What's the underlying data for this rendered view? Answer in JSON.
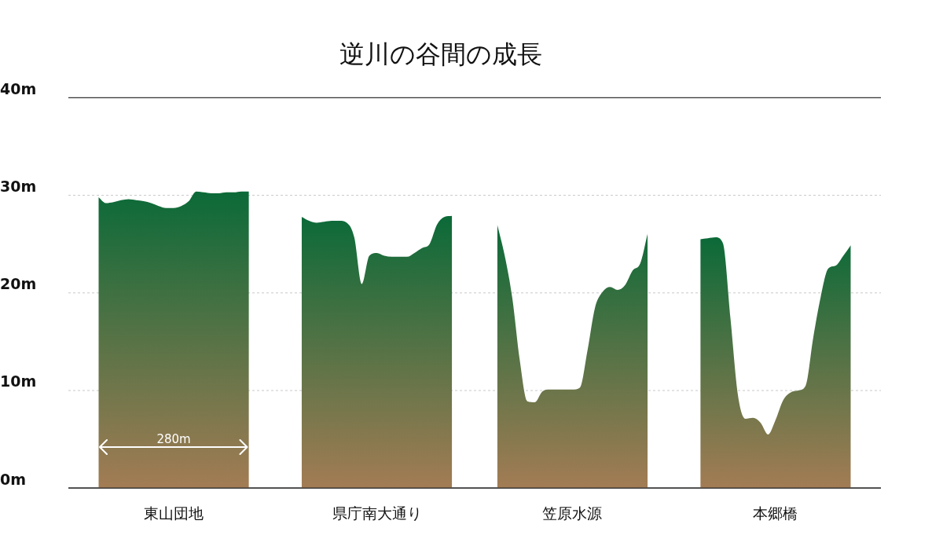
{
  "chart_data": {
    "type": "area",
    "title": "逆川の谷間の成長",
    "categories": [
      null,
      null,
      null,
      null,
      null,
      null,
      null,
      null,
      null,
      null,
      null,
      null,
      null,
      null,
      "東山団地",
      null,
      null,
      null,
      null,
      null,
      null,
      null,
      null,
      null,
      null,
      null,
      null,
      null,
      null,
      null,
      null,
      null,
      null,
      null,
      null,
      null,
      null,
      null,
      null,
      null,
      null,
      "県庁南大通り",
      null,
      null,
      null,
      null,
      null,
      null,
      null,
      null,
      null,
      null,
      null,
      null,
      null,
      null,
      null,
      null,
      null,
      null,
      null,
      null,
      null,
      null,
      null,
      null,
      null,
      "笠原水源",
      null,
      null,
      null,
      null,
      null,
      null,
      null,
      null,
      null,
      null,
      null,
      null,
      null,
      null,
      null,
      null,
      null,
      null,
      null,
      null,
      null,
      null,
      null,
      null,
      null,
      null,
      "本郷橋",
      null,
      null,
      null,
      null,
      null,
      null,
      null,
      null,
      null,
      null,
      null,
      null,
      null,
      null
    ],
    "ylim": [
      0,
      40
    ],
    "yticks": [
      {
        "value": 0,
        "label": "0m"
      },
      {
        "value": 10,
        "label": "10m"
      },
      {
        "value": 20,
        "label": "20m"
      },
      {
        "value": 30,
        "label": "30m"
      },
      {
        "value": 40,
        "label": "40m"
      }
    ],
    "grid": "y",
    "legend": false,
    "marker": "none",
    "series": [
      {
        "color": "#0b6a38",
        "values": [
          null,
          null,
          null,
          null,
          29.8,
          29.2,
          29.3,
          29.5,
          29.6,
          29.5,
          29.4,
          29.2,
          28.9,
          28.7,
          28.7,
          28.9,
          29.4,
          30.4,
          30.3,
          30.2,
          30.2,
          30.3,
          30.3,
          30.4,
          30.4,
          null,
          null,
          null,
          null,
          null,
          null,
          null,
          null,
          null,
          null,
          null,
          null,
          null,
          null,
          null,
          null,
          null,
          null,
          null,
          null,
          null,
          null,
          null,
          null,
          null,
          null,
          null,
          null,
          null,
          null,
          null,
          null,
          null,
          null,
          null,
          null,
          null,
          null,
          null,
          null,
          null,
          null,
          null,
          null,
          null,
          null,
          null,
          null,
          null,
          null,
          null,
          null,
          null,
          null,
          null,
          null,
          null,
          null,
          null,
          null,
          null,
          null,
          null,
          null,
          null,
          null,
          null,
          null,
          null,
          null,
          null,
          null,
          null,
          null,
          null,
          null,
          null,
          null,
          null,
          null,
          null,
          null,
          null,
          null
        ]
      },
      {
        "color": "#0b6a38",
        "values": [
          null,
          null,
          null,
          null,
          null,
          null,
          null,
          null,
          null,
          null,
          null,
          null,
          null,
          null,
          null,
          null,
          null,
          null,
          null,
          null,
          null,
          null,
          null,
          null,
          null,
          null,
          null,
          null,
          null,
          null,
          null,
          27.8,
          27.4,
          27.2,
          27.3,
          27.4,
          27.4,
          27.2,
          25.7,
          20.9,
          23.8,
          24.1,
          23.8,
          23.7,
          23.7,
          23.7,
          24.1,
          24.6,
          25.0,
          27.0,
          27.8,
          27.9,
          null,
          null,
          null,
          null,
          null,
          null,
          null,
          null,
          null,
          null,
          null,
          null,
          null,
          null,
          null,
          null,
          null,
          null,
          null,
          null,
          null,
          null,
          null,
          null,
          null,
          null,
          null,
          null,
          null,
          null,
          null,
          null,
          null,
          null,
          null,
          null,
          null,
          null,
          null,
          null,
          null,
          null,
          null,
          null,
          null,
          null,
          null,
          null,
          null,
          null,
          null,
          null,
          null,
          null,
          null,
          null,
          null
        ]
      },
      {
        "color": "#0b6a38",
        "values": [
          null,
          null,
          null,
          null,
          null,
          null,
          null,
          null,
          null,
          null,
          null,
          null,
          null,
          null,
          null,
          null,
          null,
          null,
          null,
          null,
          null,
          null,
          null,
          null,
          null,
          null,
          null,
          null,
          null,
          null,
          null,
          null,
          null,
          null,
          null,
          null,
          null,
          null,
          null,
          null,
          null,
          null,
          null,
          null,
          null,
          null,
          null,
          null,
          null,
          null,
          null,
          null,
          null,
          null,
          null,
          null,
          null,
          27.0,
          23.8,
          19.5,
          13.1,
          8.9,
          8.8,
          9.9,
          10.1,
          10.1,
          10.1,
          10.1,
          10.3,
          14.1,
          18.5,
          20.1,
          20.6,
          20.3,
          20.8,
          22.3,
          23.0,
          26.1,
          null,
          null,
          null,
          null,
          null,
          null,
          null,
          null,
          null,
          null,
          null,
          null,
          null,
          null,
          null,
          null,
          null,
          null,
          null,
          null,
          null,
          null,
          null,
          null,
          null,
          null,
          null,
          null,
          null,
          null,
          null
        ]
      },
      {
        "color": "#0b6a38",
        "values": [
          null,
          null,
          null,
          null,
          null,
          null,
          null,
          null,
          null,
          null,
          null,
          null,
          null,
          null,
          null,
          null,
          null,
          null,
          null,
          null,
          null,
          null,
          null,
          null,
          null,
          null,
          null,
          null,
          null,
          null,
          null,
          null,
          null,
          null,
          null,
          null,
          null,
          null,
          null,
          null,
          null,
          null,
          null,
          null,
          null,
          null,
          null,
          null,
          null,
          null,
          null,
          null,
          null,
          null,
          null,
          null,
          null,
          null,
          null,
          null,
          null,
          null,
          null,
          null,
          null,
          null,
          null,
          null,
          null,
          null,
          null,
          null,
          null,
          null,
          null,
          null,
          null,
          null,
          null,
          null,
          null,
          null,
          null,
          null,
          25.5,
          25.6,
          25.7,
          25.1,
          17.4,
          9.5,
          7.1,
          7.2,
          6.7,
          5.5,
          7.0,
          9.0,
          9.8,
          10.0,
          10.5,
          15.4,
          19.6,
          22.5,
          22.8,
          23.8,
          24.9,
          null,
          null,
          null,
          null
        ]
      }
    ],
    "annotations": [
      "280m"
    ]
  }
}
